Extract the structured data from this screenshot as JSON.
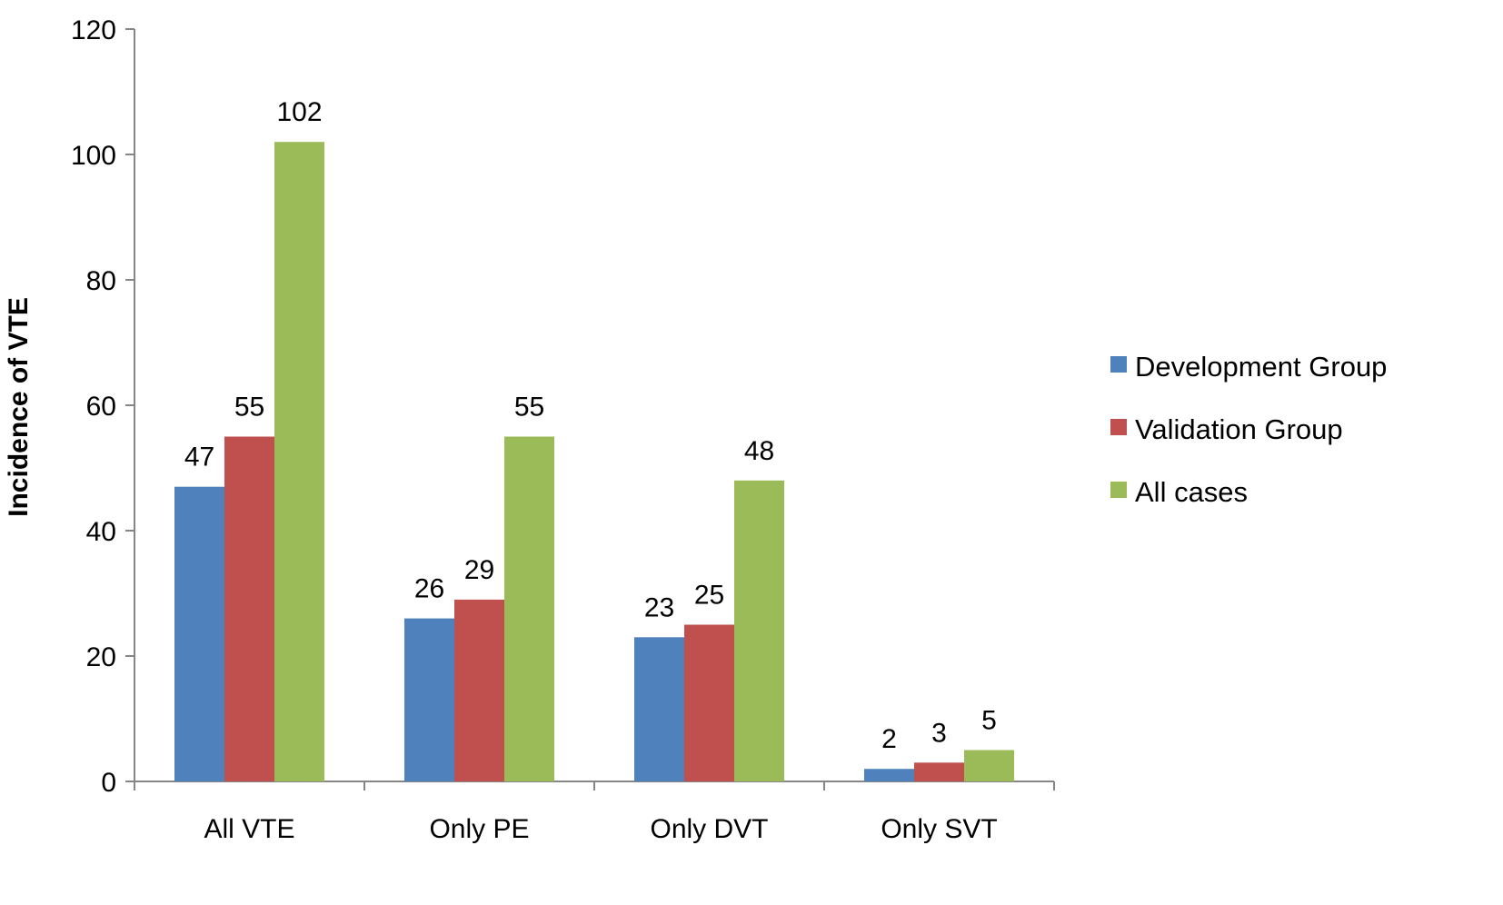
{
  "chart_data": {
    "type": "bar",
    "ylabel": "Incidence of VTE",
    "ylim": [
      0,
      120
    ],
    "yticks": [
      0,
      20,
      40,
      60,
      80,
      100,
      120
    ],
    "categories": [
      "All VTE",
      "Only PE",
      "Only DVT",
      "Only SVT"
    ],
    "series": [
      {
        "name": "Development Group",
        "color": "#4f81bd",
        "values": [
          47,
          26,
          23,
          2
        ]
      },
      {
        "name": "Validation Group",
        "color": "#c0504d",
        "values": [
          55,
          29,
          25,
          3
        ]
      },
      {
        "name": "All cases",
        "color": "#9bbb59",
        "values": [
          102,
          55,
          48,
          5
        ]
      }
    ],
    "grid": false,
    "legend": "right"
  }
}
